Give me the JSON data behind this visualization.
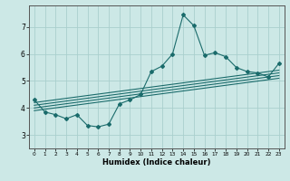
{
  "title": "",
  "xlabel": "Humidex (Indice chaleur)",
  "ylabel": "",
  "x_ticks": [
    0,
    1,
    2,
    3,
    4,
    5,
    6,
    7,
    8,
    9,
    10,
    11,
    12,
    13,
    14,
    15,
    16,
    17,
    18,
    19,
    20,
    21,
    22,
    23
  ],
  "ylim": [
    2.5,
    7.8
  ],
  "xlim": [
    -0.5,
    23.5
  ],
  "yticks": [
    3,
    4,
    5,
    6,
    7
  ],
  "bg_color": "#cce8e6",
  "grid_color": "#aacfcd",
  "line_color": "#1a6b6b",
  "curve_x": [
    0,
    1,
    2,
    3,
    4,
    5,
    6,
    7,
    8,
    9,
    10,
    11,
    12,
    13,
    14,
    15,
    16,
    17,
    18,
    19,
    20,
    21,
    22,
    23
  ],
  "curve_y": [
    4.3,
    3.85,
    3.75,
    3.6,
    3.75,
    3.35,
    3.3,
    3.4,
    4.15,
    4.3,
    4.5,
    5.35,
    5.55,
    6.0,
    7.45,
    7.05,
    5.95,
    6.05,
    5.9,
    5.5,
    5.35,
    5.3,
    5.15,
    5.65
  ],
  "line1_x": [
    0,
    23
  ],
  "line1_y": [
    3.9,
    5.1
  ],
  "line2_x": [
    0,
    23
  ],
  "line2_y": [
    4.0,
    5.2
  ],
  "line3_x": [
    0,
    23
  ],
  "line3_y": [
    4.1,
    5.3
  ],
  "line4_x": [
    0,
    23
  ],
  "line4_y": [
    4.2,
    5.4
  ]
}
